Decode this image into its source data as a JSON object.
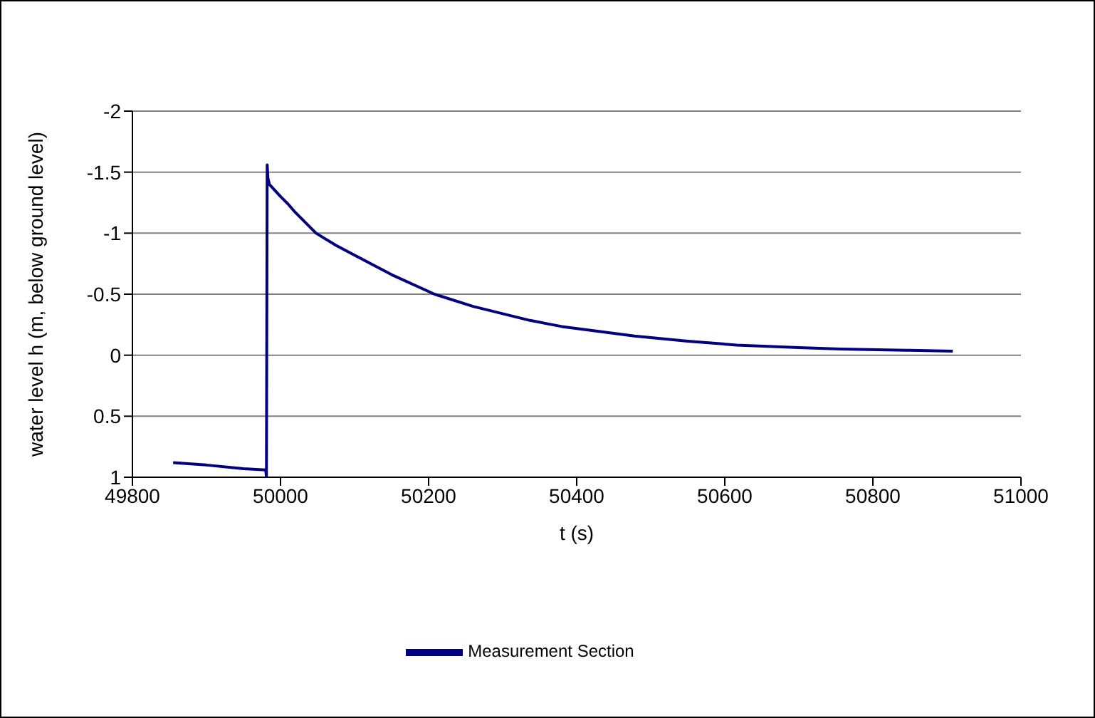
{
  "chart_data": {
    "type": "line",
    "xlabel": "t (s)",
    "ylabel": "water level h (m, below ground level)",
    "xlim": [
      49800,
      51000
    ],
    "xticks": [
      49800,
      50000,
      50200,
      50400,
      50600,
      50800,
      51000
    ],
    "ylim": [
      1,
      -2
    ],
    "yticks": [
      -2,
      -1.5,
      -1,
      -0.5,
      0,
      0.5,
      1
    ],
    "grid": "y",
    "legend": "bottom",
    "marker": "none",
    "line_style": "solid",
    "series": [
      {
        "name": "Measurement Section",
        "color": "#000080",
        "x": [
          49855,
          49900,
          49950,
          49980,
          49981,
          49982,
          49983,
          49985,
          50000,
          50010,
          50020,
          50048,
          50075,
          50100,
          50150,
          50208,
          50260,
          50337,
          50380,
          50478,
          50550,
          50616,
          50700,
          50756,
          50850,
          50908
        ],
        "values": [
          0.88,
          0.9,
          0.93,
          0.94,
          1.0,
          -1.56,
          -1.45,
          -1.4,
          -1.3,
          -1.24,
          -1.17,
          -1.0,
          -0.9,
          -0.82,
          -0.66,
          -0.5,
          -0.4,
          -0.285,
          -0.235,
          -0.157,
          -0.115,
          -0.083,
          -0.062,
          -0.05,
          -0.04,
          -0.033
        ]
      }
    ]
  }
}
